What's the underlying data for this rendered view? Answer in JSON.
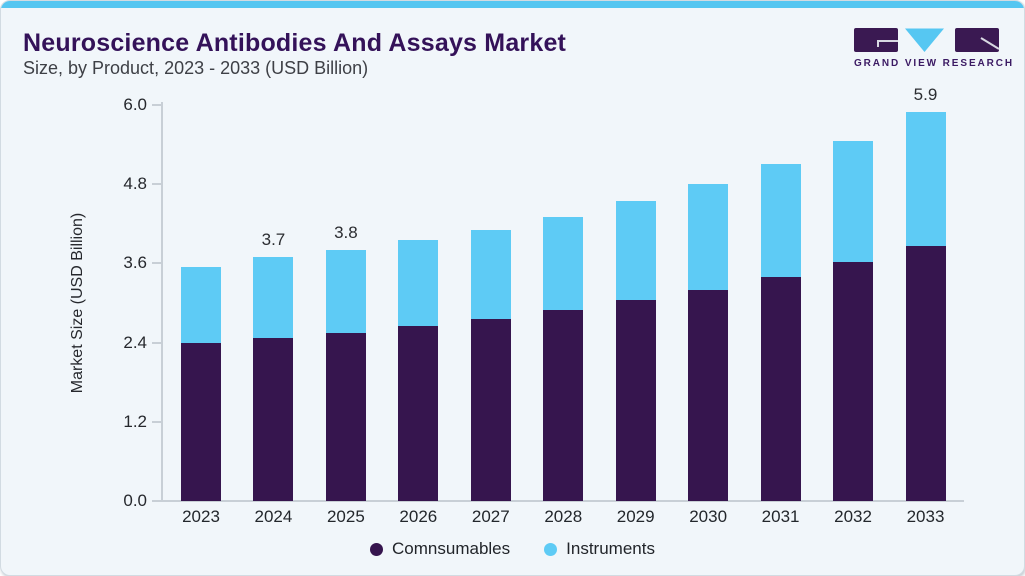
{
  "header": {
    "title": "Neuroscience Antibodies And Assays Market",
    "subtitle": "Size, by Product, 2023 - 2033 (USD Billion)"
  },
  "logo": {
    "text": "GRAND VIEW RESEARCH",
    "dark_color": "#3a1952",
    "accent_color": "#56c7f2"
  },
  "chart_data": {
    "type": "bar",
    "stacked": true,
    "title": "Neuroscience Antibodies And Assays Market Size, by Product, 2023 - 2033 (USD Billion)",
    "categories": [
      "2023",
      "2024",
      "2025",
      "2026",
      "2027",
      "2028",
      "2029",
      "2030",
      "2031",
      "2032",
      "2033"
    ],
    "series": [
      {
        "name": "Comnsumables",
        "color": "#36154e",
        "values": [
          2.4,
          2.47,
          2.55,
          2.65,
          2.76,
          2.89,
          3.04,
          3.2,
          3.4,
          3.62,
          3.87
        ]
      },
      {
        "name": "Instruments",
        "color": "#5ecbf5",
        "values": [
          1.15,
          1.23,
          1.25,
          1.3,
          1.34,
          1.41,
          1.51,
          1.6,
          1.7,
          1.83,
          2.03
        ]
      }
    ],
    "totals": [
      3.55,
      3.7,
      3.8,
      3.95,
      4.1,
      4.3,
      4.55,
      4.8,
      5.1,
      5.45,
      5.9
    ],
    "bar_labels": [
      "",
      "3.7",
      "3.8",
      "",
      "",
      "",
      "",
      "",
      "",
      "",
      "5.9"
    ],
    "ylabel": "Market Size (USD Billion)",
    "xlabel": "",
    "ylim": [
      0.0,
      6.0
    ],
    "yticks": [
      "0.0",
      "1.2",
      "2.4",
      "3.6",
      "4.8",
      "6.0"
    ],
    "grid": false,
    "legend_position": "bottom"
  },
  "colors": {
    "card_background": "#f1f6fa",
    "top_accent": "#55c6f1",
    "card_border": "#d2dbe2",
    "title_text": "#341259",
    "subtitle_text": "#3e4046",
    "axis_line": "#c8cfd6",
    "axis_text": "#26282d",
    "consumables_bar": "#36154e",
    "instruments_bar": "#5ecbf5"
  }
}
